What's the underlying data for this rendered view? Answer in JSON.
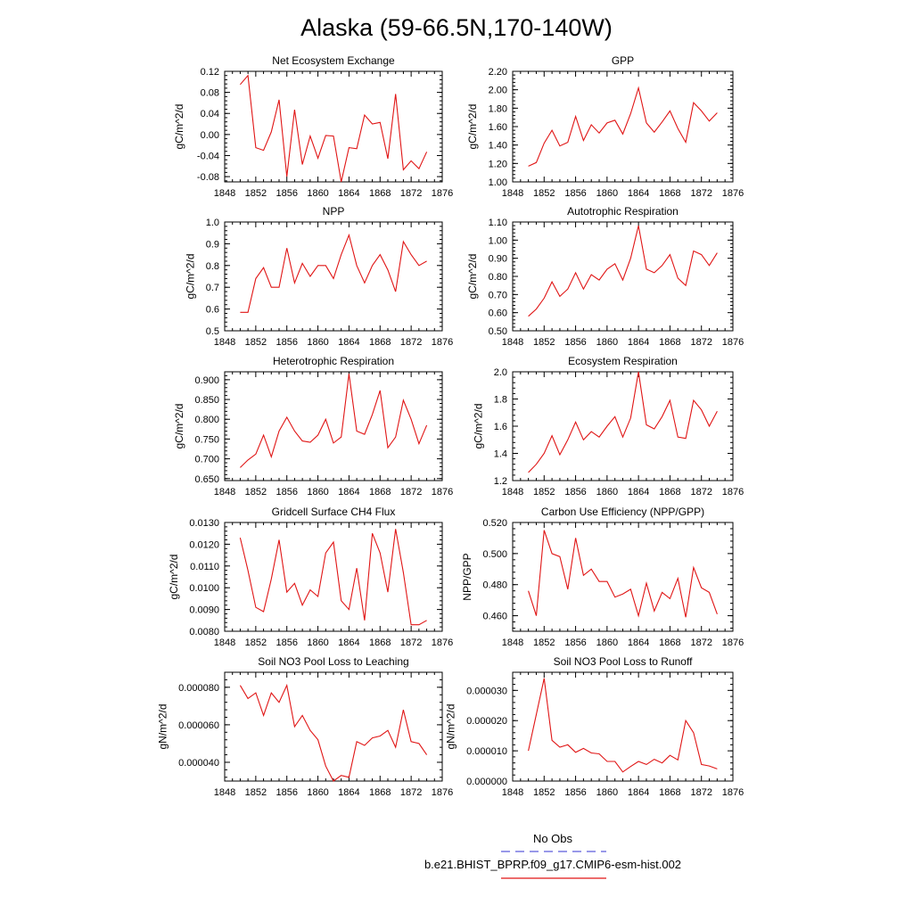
{
  "figure": {
    "title": "Alaska (59-66.5N,170-140W)",
    "legend": [
      {
        "label": "No Obs",
        "color": "#5a5adc",
        "dash": true
      },
      {
        "label": "b.e21.BHIST_BPRP.f09_g17.CMIP6-esm-hist.002",
        "color": "#e01515",
        "dash": false
      }
    ]
  },
  "chart_data": [
    {
      "type": "line",
      "title": "Net Ecosystem Exchange",
      "ylabel": "gC/m^2/d",
      "xlim": [
        1848,
        1876
      ],
      "ylim": [
        -0.09,
        0.12
      ],
      "xticks": [
        "1848",
        "1852",
        "1856",
        "1860",
        "1864",
        "1868",
        "1872",
        "1876"
      ],
      "yticks": [
        {
          "v": -0.08,
          "t": "-0.08"
        },
        {
          "v": -0.04,
          "t": "-0.04"
        },
        {
          "v": 0.0,
          "t": "0.00"
        },
        {
          "v": 0.04,
          "t": "0.04"
        },
        {
          "v": 0.08,
          "t": "0.08"
        },
        {
          "v": 0.12,
          "t": "0.12"
        }
      ],
      "x": [
        1850,
        1851,
        1852,
        1853,
        1854,
        1855,
        1856,
        1857,
        1858,
        1859,
        1860,
        1861,
        1862,
        1863,
        1864,
        1865,
        1866,
        1867,
        1868,
        1869,
        1870,
        1871,
        1872,
        1873,
        1874
      ],
      "values": [
        0.095,
        0.112,
        -0.025,
        -0.03,
        0.005,
        0.066,
        -0.08,
        0.047,
        -0.057,
        -0.003,
        -0.045,
        -0.002,
        -0.003,
        -0.09,
        -0.025,
        -0.027,
        0.037,
        0.02,
        0.023,
        -0.046,
        0.077,
        -0.067,
        -0.05,
        -0.065,
        -0.033
      ],
      "color": "#e01515"
    },
    {
      "type": "line",
      "title": "GPP",
      "ylabel": "gC/m^2/d",
      "xlim": [
        1848,
        1876
      ],
      "ylim": [
        1.0,
        2.2
      ],
      "xticks": [
        "1848",
        "1852",
        "1856",
        "1860",
        "1864",
        "1868",
        "1872",
        "1876"
      ],
      "yticks": [
        {
          "v": 1.0,
          "t": "1.00"
        },
        {
          "v": 1.2,
          "t": "1.20"
        },
        {
          "v": 1.4,
          "t": "1.40"
        },
        {
          "v": 1.6,
          "t": "1.60"
        },
        {
          "v": 1.8,
          "t": "1.80"
        },
        {
          "v": 2.0,
          "t": "2.00"
        },
        {
          "v": 2.2,
          "t": "2.20"
        }
      ],
      "x": [
        1850,
        1851,
        1852,
        1853,
        1854,
        1855,
        1856,
        1857,
        1858,
        1859,
        1860,
        1861,
        1862,
        1863,
        1864,
        1865,
        1866,
        1867,
        1868,
        1869,
        1870,
        1871,
        1872,
        1873,
        1874
      ],
      "values": [
        1.17,
        1.21,
        1.42,
        1.56,
        1.39,
        1.43,
        1.71,
        1.45,
        1.62,
        1.53,
        1.64,
        1.67,
        1.52,
        1.74,
        2.02,
        1.64,
        1.54,
        1.65,
        1.77,
        1.58,
        1.43,
        1.86,
        1.77,
        1.66,
        1.75
      ],
      "color": "#e01515"
    },
    {
      "type": "line",
      "title": "NPP",
      "ylabel": "gC/m^2/d",
      "xlim": [
        1848,
        1876
      ],
      "ylim": [
        0.5,
        1.0
      ],
      "xticks": [
        "1848",
        "1852",
        "1856",
        "1860",
        "1864",
        "1868",
        "1872",
        "1876"
      ],
      "yticks": [
        {
          "v": 0.5,
          "t": "0.5"
        },
        {
          "v": 0.6,
          "t": "0.6"
        },
        {
          "v": 0.7,
          "t": "0.7"
        },
        {
          "v": 0.8,
          "t": "0.8"
        },
        {
          "v": 0.9,
          "t": "0.9"
        },
        {
          "v": 1.0,
          "t": "1.0"
        }
      ],
      "x": [
        1850,
        1851,
        1852,
        1853,
        1854,
        1855,
        1856,
        1857,
        1858,
        1859,
        1860,
        1861,
        1862,
        1863,
        1864,
        1865,
        1866,
        1867,
        1868,
        1869,
        1870,
        1871,
        1872,
        1873,
        1874
      ],
      "values": [
        0.585,
        0.585,
        0.74,
        0.79,
        0.7,
        0.7,
        0.88,
        0.72,
        0.81,
        0.75,
        0.8,
        0.8,
        0.74,
        0.85,
        0.94,
        0.8,
        0.72,
        0.8,
        0.85,
        0.78,
        0.68,
        0.91,
        0.85,
        0.8,
        0.82
      ],
      "color": "#e01515"
    },
    {
      "type": "line",
      "title": "Autotrophic Respiration",
      "ylabel": "gC/m^2/d",
      "xlim": [
        1848,
        1876
      ],
      "ylim": [
        0.5,
        1.1
      ],
      "xticks": [
        "1848",
        "1852",
        "1856",
        "1860",
        "1864",
        "1868",
        "1872",
        "1876"
      ],
      "yticks": [
        {
          "v": 0.5,
          "t": "0.50"
        },
        {
          "v": 0.6,
          "t": "0.60"
        },
        {
          "v": 0.7,
          "t": "0.70"
        },
        {
          "v": 0.8,
          "t": "0.80"
        },
        {
          "v": 0.9,
          "t": "0.90"
        },
        {
          "v": 1.0,
          "t": "1.00"
        },
        {
          "v": 1.1,
          "t": "1.10"
        }
      ],
      "x": [
        1850,
        1851,
        1852,
        1853,
        1854,
        1855,
        1856,
        1857,
        1858,
        1859,
        1860,
        1861,
        1862,
        1863,
        1864,
        1865,
        1866,
        1867,
        1868,
        1869,
        1870,
        1871,
        1872,
        1873,
        1874
      ],
      "values": [
        0.58,
        0.62,
        0.68,
        0.77,
        0.69,
        0.73,
        0.82,
        0.73,
        0.81,
        0.78,
        0.84,
        0.87,
        0.78,
        0.9,
        1.08,
        0.84,
        0.82,
        0.86,
        0.92,
        0.79,
        0.75,
        0.94,
        0.92,
        0.86,
        0.93
      ],
      "color": "#e01515"
    },
    {
      "type": "line",
      "title": "Heterotrophic Respiration",
      "ylabel": "gC/m^2/d",
      "xlim": [
        1848,
        1876
      ],
      "ylim": [
        0.645,
        0.92
      ],
      "xticks": [
        "1848",
        "1852",
        "1856",
        "1860",
        "1864",
        "1868",
        "1872",
        "1876"
      ],
      "yticks": [
        {
          "v": 0.65,
          "t": "0.650"
        },
        {
          "v": 0.7,
          "t": "0.700"
        },
        {
          "v": 0.75,
          "t": "0.750"
        },
        {
          "v": 0.8,
          "t": "0.800"
        },
        {
          "v": 0.85,
          "t": "0.850"
        },
        {
          "v": 0.9,
          "t": "0.900"
        }
      ],
      "x": [
        1850,
        1851,
        1852,
        1853,
        1854,
        1855,
        1856,
        1857,
        1858,
        1859,
        1860,
        1861,
        1862,
        1863,
        1864,
        1865,
        1866,
        1867,
        1868,
        1869,
        1870,
        1871,
        1872,
        1873,
        1874
      ],
      "values": [
        0.678,
        0.697,
        0.712,
        0.76,
        0.705,
        0.77,
        0.805,
        0.77,
        0.745,
        0.742,
        0.76,
        0.8,
        0.74,
        0.755,
        0.915,
        0.77,
        0.762,
        0.812,
        0.873,
        0.728,
        0.755,
        0.848,
        0.8,
        0.738,
        0.785
      ],
      "color": "#e01515"
    },
    {
      "type": "line",
      "title": "Ecosystem Respiration",
      "ylabel": "gC/m^2/d",
      "xlim": [
        1848,
        1876
      ],
      "ylim": [
        1.2,
        2.0
      ],
      "xticks": [
        "1848",
        "1852",
        "1856",
        "1860",
        "1864",
        "1868",
        "1872",
        "1876"
      ],
      "yticks": [
        {
          "v": 1.2,
          "t": "1.2"
        },
        {
          "v": 1.4,
          "t": "1.4"
        },
        {
          "v": 1.6,
          "t": "1.6"
        },
        {
          "v": 1.8,
          "t": "1.8"
        },
        {
          "v": 2.0,
          "t": "2.0"
        }
      ],
      "x": [
        1850,
        1851,
        1852,
        1853,
        1854,
        1855,
        1856,
        1857,
        1858,
        1859,
        1860,
        1861,
        1862,
        1863,
        1864,
        1865,
        1866,
        1867,
        1868,
        1869,
        1870,
        1871,
        1872,
        1873,
        1874
      ],
      "values": [
        1.26,
        1.32,
        1.4,
        1.53,
        1.39,
        1.5,
        1.63,
        1.5,
        1.56,
        1.52,
        1.6,
        1.67,
        1.52,
        1.66,
        2.0,
        1.61,
        1.58,
        1.67,
        1.79,
        1.52,
        1.51,
        1.79,
        1.72,
        1.6,
        1.71
      ],
      "color": "#e01515"
    },
    {
      "type": "line",
      "title": "Gridcell Surface CH4 Flux",
      "ylabel": "gC/m^2/d",
      "xlim": [
        1848,
        1876
      ],
      "ylim": [
        0.008,
        0.013
      ],
      "xticks": [
        "1848",
        "1852",
        "1856",
        "1860",
        "1864",
        "1868",
        "1872",
        "1876"
      ],
      "yticks": [
        {
          "v": 0.008,
          "t": "0.0080"
        },
        {
          "v": 0.009,
          "t": "0.0090"
        },
        {
          "v": 0.01,
          "t": "0.0100"
        },
        {
          "v": 0.011,
          "t": "0.0110"
        },
        {
          "v": 0.012,
          "t": "0.0120"
        },
        {
          "v": 0.013,
          "t": "0.0130"
        }
      ],
      "x": [
        1850,
        1851,
        1852,
        1853,
        1854,
        1855,
        1856,
        1857,
        1858,
        1859,
        1860,
        1861,
        1862,
        1863,
        1864,
        1865,
        1866,
        1867,
        1868,
        1869,
        1870,
        1871,
        1872,
        1873,
        1874
      ],
      "values": [
        0.0123,
        0.0108,
        0.0091,
        0.0089,
        0.0104,
        0.0122,
        0.0098,
        0.0102,
        0.0092,
        0.0099,
        0.0096,
        0.0116,
        0.0121,
        0.0094,
        0.009,
        0.0109,
        0.0085,
        0.0125,
        0.0116,
        0.0098,
        0.0127,
        0.0107,
        0.0083,
        0.0083,
        0.0085
      ],
      "color": "#e01515"
    },
    {
      "type": "line",
      "title": "Carbon Use Efficiency (NPP/GPP)",
      "ylabel": "NPP/GPP",
      "xlim": [
        1848,
        1876
      ],
      "ylim": [
        0.45,
        0.52
      ],
      "xticks": [
        "1848",
        "1852",
        "1856",
        "1860",
        "1864",
        "1868",
        "1872",
        "1876"
      ],
      "yticks": [
        {
          "v": 0.46,
          "t": "0.460"
        },
        {
          "v": 0.48,
          "t": "0.480"
        },
        {
          "v": 0.5,
          "t": "0.500"
        },
        {
          "v": 0.52,
          "t": "0.520"
        }
      ],
      "x": [
        1850,
        1851,
        1852,
        1853,
        1854,
        1855,
        1856,
        1857,
        1858,
        1859,
        1860,
        1861,
        1862,
        1863,
        1864,
        1865,
        1866,
        1867,
        1868,
        1869,
        1870,
        1871,
        1872,
        1873,
        1874
      ],
      "values": [
        0.476,
        0.46,
        0.515,
        0.5,
        0.498,
        0.477,
        0.51,
        0.486,
        0.49,
        0.482,
        0.482,
        0.472,
        0.474,
        0.477,
        0.46,
        0.481,
        0.463,
        0.475,
        0.471,
        0.484,
        0.459,
        0.491,
        0.478,
        0.475,
        0.461
      ],
      "color": "#e01515"
    },
    {
      "type": "line",
      "title": "Soil NO3 Pool Loss to Leaching",
      "ylabel": "gN/m^2/d",
      "xlim": [
        1848,
        1876
      ],
      "ylim": [
        3e-05,
        8.8e-05
      ],
      "xticks": [
        "1848",
        "1852",
        "1856",
        "1860",
        "1864",
        "1868",
        "1872",
        "1876"
      ],
      "yticks": [
        {
          "v": 4e-05,
          "t": "0.000040"
        },
        {
          "v": 6e-05,
          "t": "0.000060"
        },
        {
          "v": 8e-05,
          "t": "0.000080"
        }
      ],
      "x": [
        1850,
        1851,
        1852,
        1853,
        1854,
        1855,
        1856,
        1857,
        1858,
        1859,
        1860,
        1861,
        1862,
        1863,
        1864,
        1865,
        1866,
        1867,
        1868,
        1869,
        1870,
        1871,
        1872,
        1873,
        1874
      ],
      "values": [
        8.1e-05,
        7.4e-05,
        7.7e-05,
        6.5e-05,
        7.7e-05,
        7.2e-05,
        8.1e-05,
        5.9e-05,
        6.5e-05,
        5.7e-05,
        5.2e-05,
        3.8e-05,
        3e-05,
        3.3e-05,
        3.2e-05,
        5.1e-05,
        4.9e-05,
        5.3e-05,
        5.4e-05,
        5.7e-05,
        4.8e-05,
        6.8e-05,
        5.1e-05,
        5e-05,
        4.4e-05
      ],
      "color": "#e01515"
    },
    {
      "type": "line",
      "title": "Soil NO3 Pool Loss to Runoff",
      "ylabel": "gN/m^2/d",
      "xlim": [
        1848,
        1876
      ],
      "ylim": [
        0.0,
        3.6e-05
      ],
      "xticks": [
        "1848",
        "1852",
        "1856",
        "1860",
        "1864",
        "1868",
        "1872",
        "1876"
      ],
      "yticks": [
        {
          "v": 0.0,
          "t": "0.000000"
        },
        {
          "v": 1e-05,
          "t": "0.000010"
        },
        {
          "v": 2e-05,
          "t": "0.000020"
        },
        {
          "v": 3e-05,
          "t": "0.000030"
        }
      ],
      "x": [
        1850,
        1851,
        1852,
        1853,
        1854,
        1855,
        1856,
        1857,
        1858,
        1859,
        1860,
        1861,
        1862,
        1863,
        1864,
        1865,
        1866,
        1867,
        1868,
        1869,
        1870,
        1871,
        1872,
        1873,
        1874
      ],
      "values": [
        1e-05,
        2.2e-05,
        3.4e-05,
        1.35e-05,
        1.12e-05,
        1.2e-05,
        9.5e-06,
        1.08e-05,
        9.3e-06,
        9e-06,
        6.5e-06,
        6.5e-06,
        3e-06,
        4.8e-06,
        6.5e-06,
        5.5e-06,
        7.2e-06,
        6e-06,
        8.5e-06,
        7e-06,
        2e-05,
        1.6e-05,
        5.5e-06,
        5e-06,
        4e-06
      ],
      "color": "#e01515"
    }
  ]
}
